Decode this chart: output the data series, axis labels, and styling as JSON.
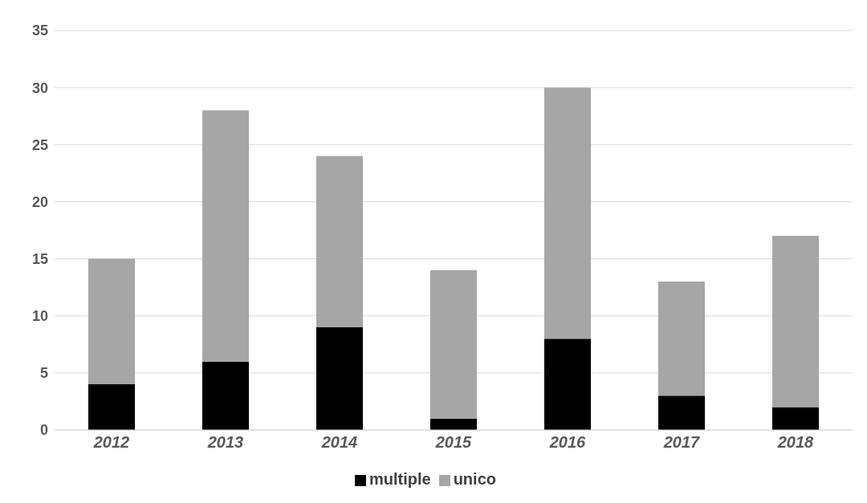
{
  "chart_data": {
    "type": "bar",
    "stacked": true,
    "categories": [
      "2012",
      "2013",
      "2014",
      "2015",
      "2016",
      "2017",
      "2018"
    ],
    "series": [
      {
        "name": "multiple",
        "color": "#000000",
        "values": [
          4,
          6,
          9,
          1,
          8,
          3,
          2
        ]
      },
      {
        "name": "unico",
        "color": "#a6a6a6",
        "values": [
          11,
          22,
          15,
          13,
          22,
          10,
          15
        ]
      }
    ],
    "ylim": [
      0,
      35
    ],
    "yticks": [
      0,
      5,
      10,
      15,
      20,
      25,
      30,
      35
    ],
    "grid": "y",
    "legend": "bottom"
  }
}
